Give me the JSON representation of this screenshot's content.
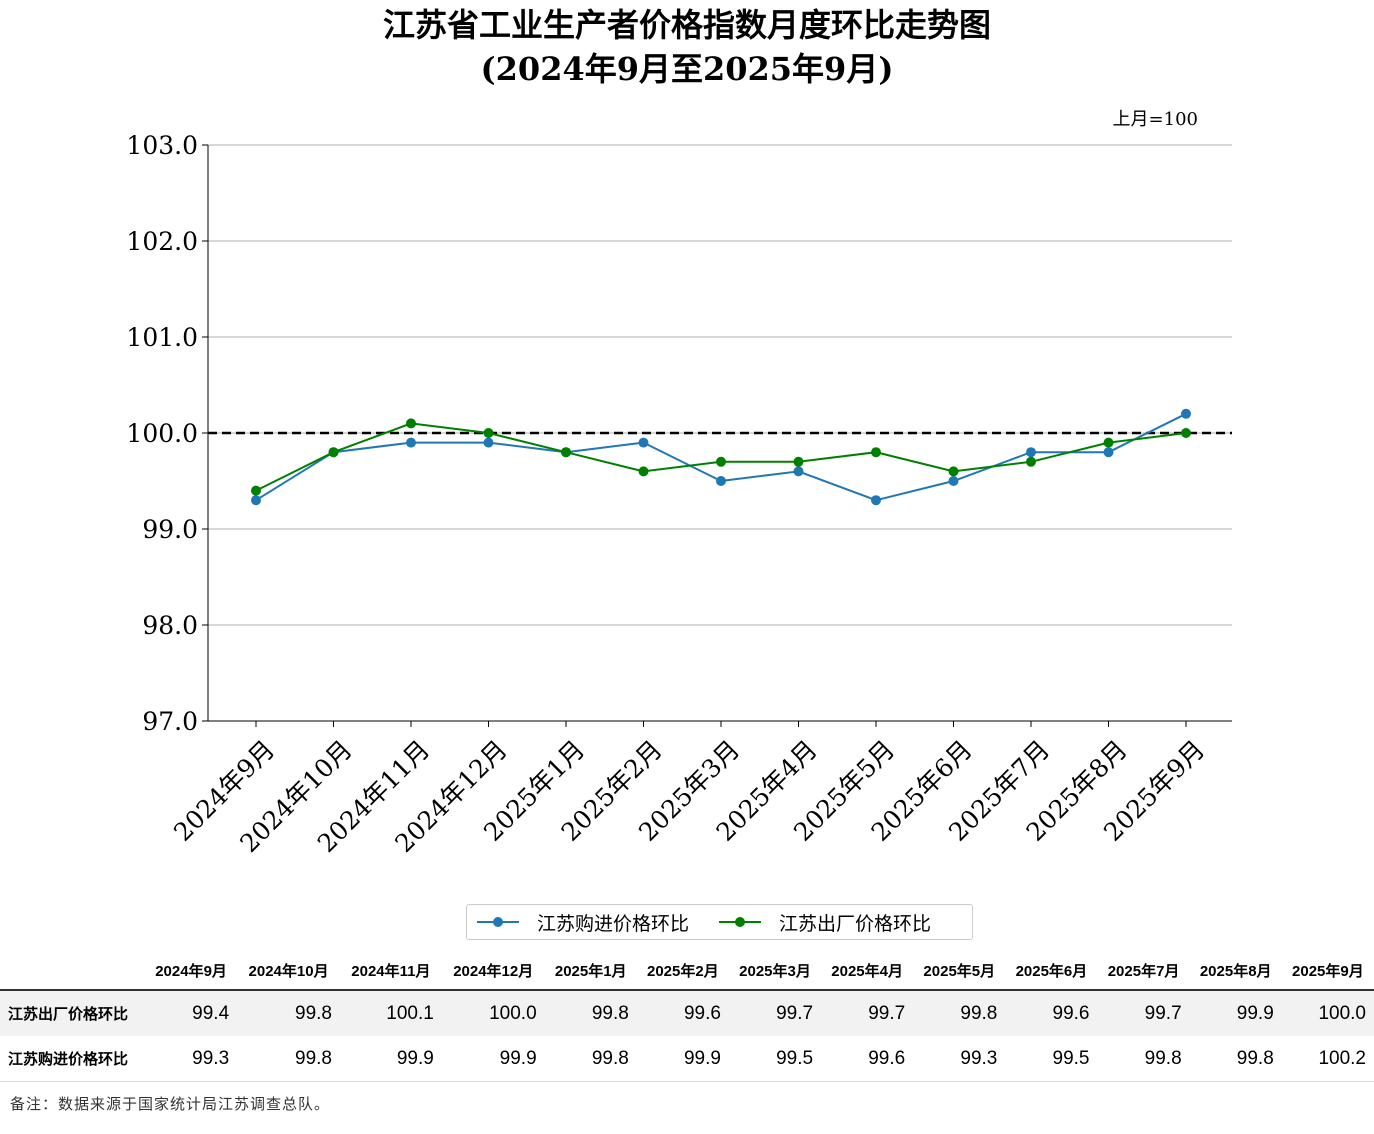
{
  "chart_data": {
    "type": "line",
    "title": "江苏省工业生产者价格指数月度环比走势图",
    "subtitle": "(2024年9月至2025年9月)",
    "unit_note": "上月=100",
    "categories": [
      "2024年9月",
      "2024年10月",
      "2024年11月",
      "2024年12月",
      "2025年1月",
      "2025年2月",
      "2025年3月",
      "2025年4月",
      "2025年5月",
      "2025年6月",
      "2025年7月",
      "2025年8月",
      "2025年9月"
    ],
    "series": [
      {
        "name": "江苏购进价格环比",
        "color": "#1f77b4",
        "values": [
          99.3,
          99.8,
          99.9,
          99.9,
          99.8,
          99.9,
          99.5,
          99.6,
          99.3,
          99.5,
          99.8,
          99.8,
          100.2
        ]
      },
      {
        "name": "江苏出厂价格环比",
        "color": "#008000",
        "values": [
          99.4,
          99.8,
          100.1,
          100.0,
          99.8,
          99.6,
          99.7,
          99.7,
          99.8,
          99.6,
          99.7,
          99.9,
          100.0
        ]
      }
    ],
    "ylim": [
      97.0,
      103.0
    ],
    "yticks": [
      "97.0",
      "98.0",
      "99.0",
      "100.0",
      "101.0",
      "102.0",
      "103.0"
    ],
    "reference_line": 100.0,
    "grid": "horizontal",
    "legend": "bottom-center"
  },
  "table": {
    "headers": [
      "2024年9月",
      "2024年10月",
      "2024年11月",
      "2024年12月",
      "2025年1月",
      "2025年2月",
      "2025年3月",
      "2025年4月",
      "2025年5月",
      "2025年6月",
      "2025年7月",
      "2025年8月",
      "2025年9月"
    ],
    "rows": [
      {
        "label": "江苏出厂价格环比",
        "values": [
          "99.4",
          "99.8",
          "100.1",
          "100.0",
          "99.8",
          "99.6",
          "99.7",
          "99.7",
          "99.8",
          "99.6",
          "99.7",
          "99.9",
          "100.0"
        ]
      },
      {
        "label": "江苏购进价格环比",
        "values": [
          "99.3",
          "99.8",
          "99.9",
          "99.9",
          "99.8",
          "99.9",
          "99.5",
          "99.6",
          "99.3",
          "99.5",
          "99.8",
          "99.8",
          "100.2"
        ]
      }
    ]
  },
  "note": "备注：数据来源于国家统计局江苏调查总队。"
}
